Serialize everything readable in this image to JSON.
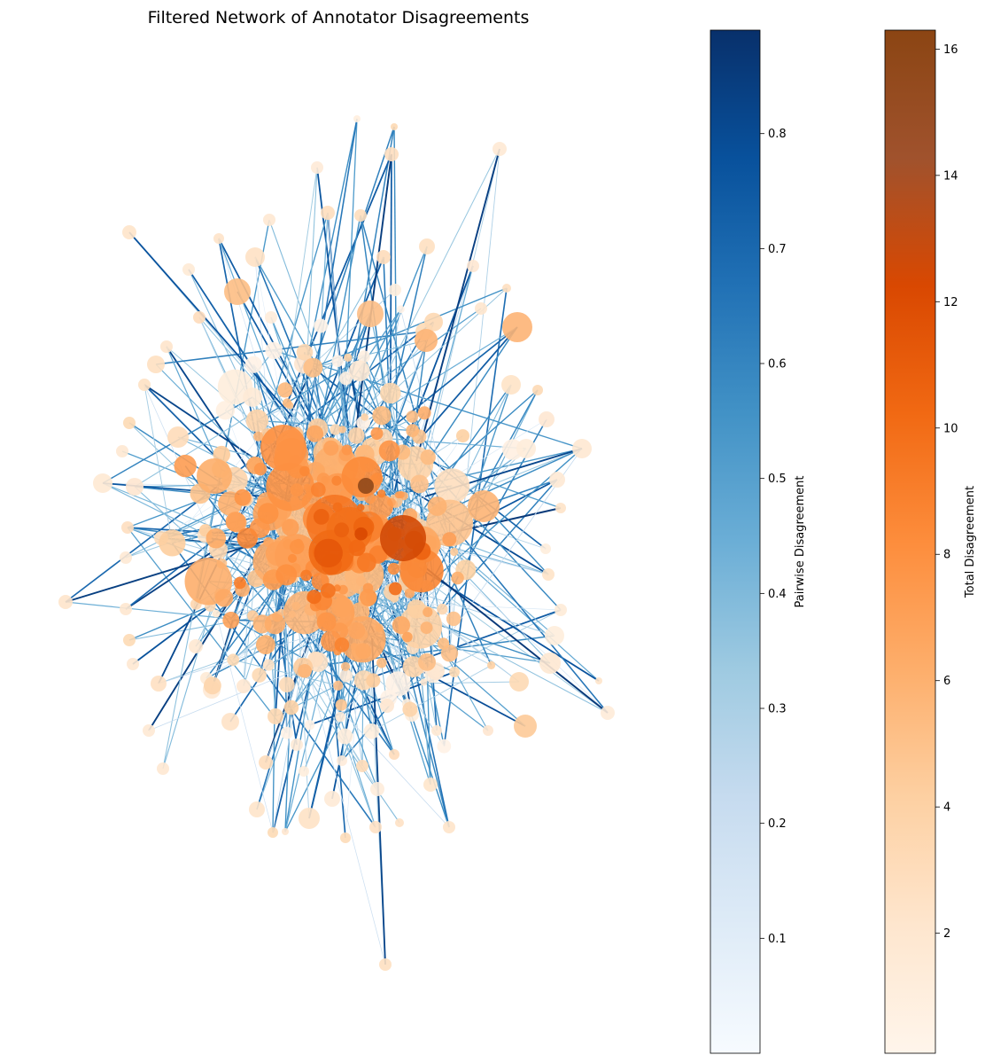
{
  "chart_data": {
    "type": "network",
    "title": "Filtered Network of Annotator Disagreements",
    "edge_colorbar": {
      "label": "Pairwise Disagreement",
      "range": [
        0.0,
        0.89
      ],
      "ticks": [
        0.1,
        0.2,
        0.3,
        0.4,
        0.5,
        0.6,
        0.7,
        0.8
      ],
      "tick_labels": [
        "0.1",
        "0.2",
        "0.3",
        "0.4",
        "0.5",
        "0.6",
        "0.7",
        "0.8"
      ],
      "colormap": [
        "#f7fbff",
        "#deebf7",
        "#c6dbef",
        "#9ecae1",
        "#6baed6",
        "#4292c6",
        "#2171b5",
        "#08519c",
        "#08306b"
      ]
    },
    "node_colorbar": {
      "label": "Total Disagreement",
      "range": [
        0.1,
        16.3
      ],
      "ticks": [
        2,
        4,
        6,
        8,
        10,
        12,
        14,
        16
      ],
      "tick_labels": [
        "2",
        "4",
        "6",
        "8",
        "10",
        "12",
        "14",
        "16"
      ],
      "colormap": [
        "#fff5eb",
        "#fee6ce",
        "#fdd0a2",
        "#fdae6b",
        "#fd8d3c",
        "#f16913",
        "#d94801",
        "#a0522d",
        "#8b4513"
      ]
    },
    "grid": false,
    "axes_visible": false
  }
}
